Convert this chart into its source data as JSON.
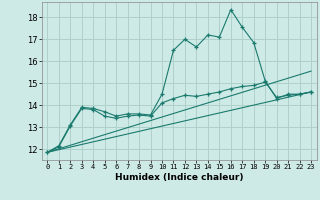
{
  "xlabel": "Humidex (Indice chaleur)",
  "background_color": "#ceeae6",
  "grid_color": "#b0d0cc",
  "line_color": "#1a7a6e",
  "xlim": [
    -0.5,
    23.5
  ],
  "ylim": [
    11.5,
    18.7
  ],
  "yticks": [
    12,
    13,
    14,
    15,
    16,
    17,
    18
  ],
  "xticks": [
    0,
    1,
    2,
    3,
    4,
    5,
    6,
    7,
    8,
    9,
    10,
    11,
    12,
    13,
    14,
    15,
    16,
    17,
    18,
    19,
    20,
    21,
    22,
    23
  ],
  "series1_x": [
    0,
    1,
    2,
    3,
    4,
    5,
    6,
    7,
    8,
    9,
    10,
    11,
    12,
    13,
    14,
    15,
    16,
    17,
    18,
    19,
    20,
    21,
    22,
    23
  ],
  "series1_y": [
    11.85,
    12.15,
    13.1,
    13.9,
    13.85,
    13.7,
    13.5,
    13.6,
    13.6,
    13.55,
    14.5,
    16.5,
    17.0,
    16.65,
    17.2,
    17.1,
    18.35,
    17.55,
    16.85,
    15.1,
    14.3,
    14.5,
    14.5,
    14.6
  ],
  "series2_x": [
    0,
    1,
    2,
    3,
    4,
    5,
    6,
    7,
    8,
    9,
    10,
    11,
    12,
    13,
    14,
    15,
    16,
    17,
    18,
    19,
    20,
    21,
    22,
    23
  ],
  "series2_y": [
    11.85,
    12.1,
    13.05,
    13.85,
    13.8,
    13.5,
    13.4,
    13.5,
    13.55,
    13.5,
    14.1,
    14.3,
    14.45,
    14.4,
    14.5,
    14.6,
    14.75,
    14.85,
    14.9,
    15.05,
    14.35,
    14.45,
    14.5,
    14.6
  ],
  "series3_x": [
    0,
    23
  ],
  "series3_y": [
    11.85,
    14.6
  ],
  "series4_x": [
    0,
    23
  ],
  "series4_y": [
    11.85,
    15.55
  ]
}
